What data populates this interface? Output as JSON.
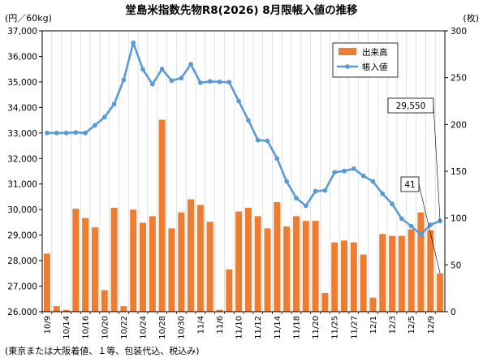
{
  "chart_data": {
    "type": "bar+line",
    "title": "堂島米指数先物R8(2026) 8月限帳入値の推移",
    "ylabel_left": "(円／60kg)",
    "ylabel_right": "(枚)",
    "footnote": "(東京または大阪着値、１等、包装代込、税込み)",
    "ylim_left": [
      26000,
      37000
    ],
    "ylim_right": [
      0,
      300
    ],
    "yticks_left": [
      "26,000",
      "27,000",
      "28,000",
      "29,000",
      "30,000",
      "31,000",
      "32,000",
      "33,000",
      "34,000",
      "35,000",
      "36,000",
      "37,000"
    ],
    "yticks_right": [
      "0",
      "50",
      "100",
      "150",
      "200",
      "250",
      "300"
    ],
    "xtick_labels": [
      "10/9",
      "10/14",
      "10/16",
      "10/20",
      "10/22",
      "10/24",
      "10/28",
      "10/30",
      "11/4",
      "11/6",
      "11/10",
      "11/12",
      "11/14",
      "11/18",
      "11/20",
      "11/25",
      "11/27",
      "12/1",
      "12/3",
      "12/5",
      "12/9"
    ],
    "legend": {
      "bar": "出来高",
      "line": "帳入値",
      "position": "top-right"
    },
    "annotations": {
      "last_price": "29,550",
      "last_volume": "41"
    },
    "colors": {
      "bar": "#ED7D31",
      "line": "#5B9BD5"
    },
    "grid": "vertical-only",
    "series": [
      {
        "name": "出来高",
        "axis": "right",
        "values": [
          62,
          6,
          2,
          110,
          100,
          90,
          23,
          111,
          6,
          109,
          95,
          102,
          205,
          89,
          106,
          120,
          114,
          96,
          2,
          45,
          107,
          111,
          102,
          89,
          117,
          91,
          102,
          97,
          97,
          20,
          74,
          76,
          74,
          61,
          15,
          83,
          81,
          81,
          88,
          106,
          87,
          41
        ]
      },
      {
        "name": "帳入値",
        "axis": "left",
        "values": [
          33000,
          33000,
          33000,
          33020,
          33000,
          33300,
          33620,
          34130,
          35080,
          36530,
          35490,
          34910,
          35500,
          35050,
          35150,
          35690,
          34970,
          35020,
          35000,
          34990,
          34250,
          33500,
          32720,
          32690,
          32000,
          31100,
          30450,
          30150,
          30720,
          30750,
          31460,
          31510,
          31600,
          31320,
          31100,
          30620,
          30220,
          29640,
          29350,
          29020,
          29400,
          29550
        ]
      }
    ]
  }
}
